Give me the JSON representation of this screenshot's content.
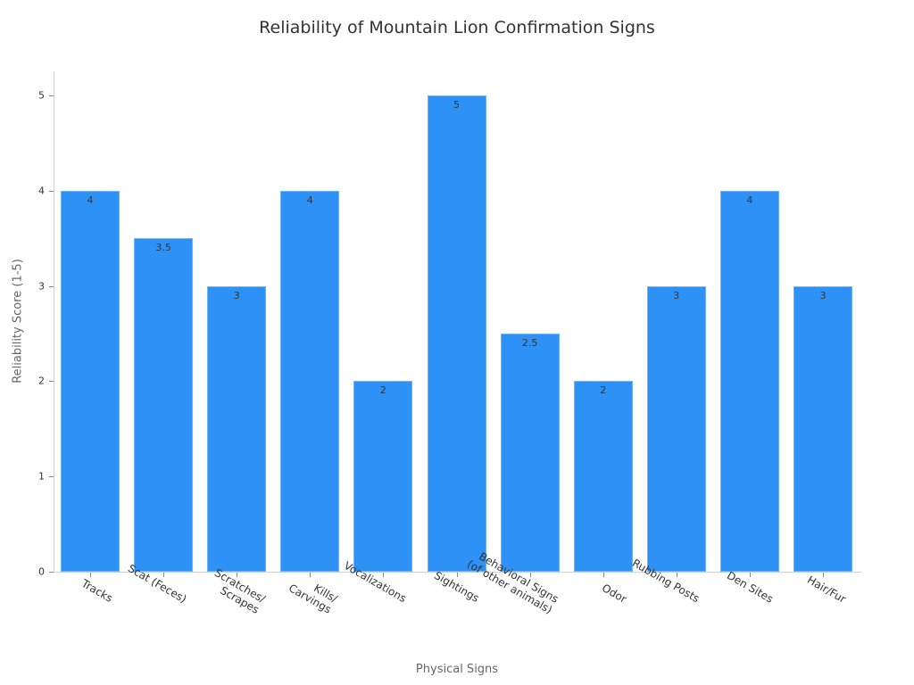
{
  "chart_data": {
    "type": "bar",
    "title": "Reliability of Mountain Lion Confirmation Signs",
    "xlabel": "Physical Signs",
    "ylabel": "Reliability Score (1-5)",
    "ylim": [
      0,
      5.25
    ],
    "yticks": [
      "0",
      "1",
      "2",
      "3",
      "4",
      "5"
    ],
    "grid": false,
    "legend": null,
    "bar_color": "#2e91f5",
    "categories": [
      "Tracks",
      "Scat (Feces)",
      "Scratches/\nScrapes",
      "Kills/\nCarvings",
      "Vocalizations",
      "Sightings",
      "Behavioral Signs\n(of other animals)",
      "Odor",
      "Rubbing Posts",
      "Den Sites",
      "Hair/Fur"
    ],
    "values": [
      4,
      3.5,
      3,
      4,
      2,
      5,
      2.5,
      2,
      3,
      4,
      3
    ],
    "value_labels": [
      "4",
      "3.5",
      "3",
      "4",
      "2",
      "5",
      "2.5",
      "2",
      "3",
      "4",
      "3"
    ]
  }
}
